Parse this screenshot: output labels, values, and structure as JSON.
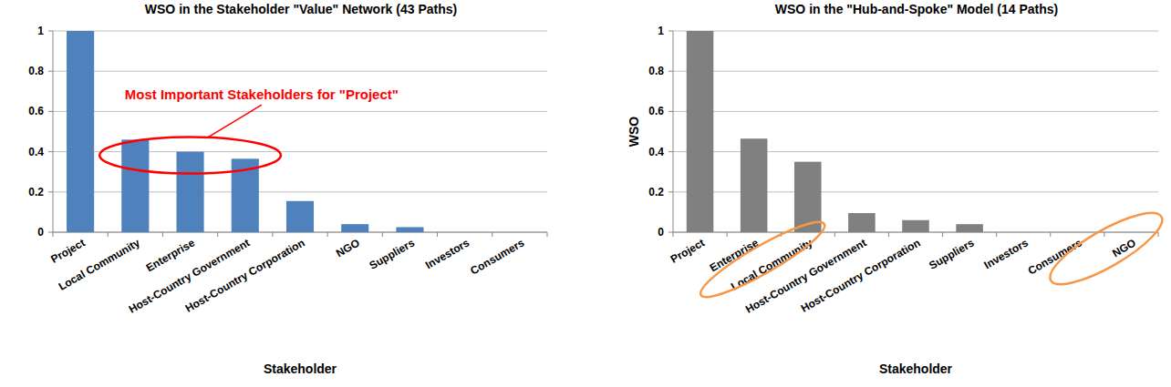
{
  "chart_data": [
    {
      "type": "bar",
      "title": "WSO in the Stakeholder \"Value\" Network (43 Paths)",
      "x_label": "Stakeholder",
      "annotation": "Most Important Stakeholders for \"Project\"",
      "categories": [
        "Project",
        "Local Community",
        "Enterprise",
        "Host-Country Government",
        "Host-Country Corporation",
        "NGO",
        "Suppliers",
        "Investors",
        "Consumers"
      ],
      "values": [
        1,
        0.46,
        0.4,
        0.365,
        0.155,
        0.04,
        0.025,
        0,
        0
      ],
      "color": "#4f81bd",
      "ylim": [
        0,
        1
      ],
      "yticks": [
        0,
        0.2,
        0.4,
        0.6,
        0.8,
        1
      ],
      "grid": true
    },
    {
      "type": "bar",
      "title": "WSO in the \"Hub-and-Spoke\" Model (14 Paths)",
      "x_label": "Stakeholder",
      "y_label": "WSO",
      "categories": [
        "Project",
        "Enterprise",
        "Local Community",
        "Host-Country Government",
        "Host-Country Corporation",
        "Suppliers",
        "Investors",
        "Consumers",
        "NGO"
      ],
      "values": [
        1,
        0.465,
        0.35,
        0.095,
        0.06,
        0.04,
        0,
        0,
        0
      ],
      "color": "#808080",
      "ylim": [
        0,
        1
      ],
      "yticks": [
        0,
        0.2,
        0.4,
        0.6,
        0.8,
        1
      ],
      "grid": true
    }
  ]
}
